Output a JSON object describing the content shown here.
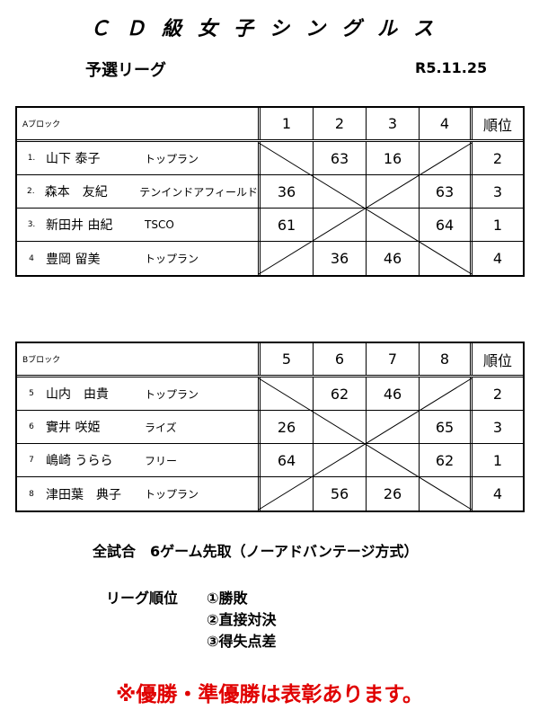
{
  "title": "ＣＤ級女子シングルス",
  "subtitle": "予選リーグ",
  "date": "R5.11.25",
  "blocks": [
    {
      "label": "Aブロック",
      "cols": [
        "1",
        "2",
        "3",
        "4"
      ],
      "rank_header": "順位",
      "players": [
        {
          "no": "1.",
          "name": "山下 泰子",
          "club": "トップラン",
          "scores": [
            "",
            "63",
            "16",
            ""
          ],
          "rank": "2"
        },
        {
          "no": "2.",
          "name": "森本　友紀",
          "club": "テンインドアフィールド",
          "scores": [
            "36",
            "",
            "",
            "63"
          ],
          "rank": "3"
        },
        {
          "no": "3.",
          "name": "新田井 由紀",
          "club": "TSCO",
          "scores": [
            "61",
            "",
            "",
            "64"
          ],
          "rank": "1"
        },
        {
          "no": "4",
          "name": "豊岡 留美",
          "club": "トップラン",
          "scores": [
            "",
            "36",
            "46",
            ""
          ],
          "rank": "4"
        }
      ]
    },
    {
      "label": "Bブロック",
      "cols": [
        "5",
        "6",
        "7",
        "8"
      ],
      "rank_header": "順位",
      "players": [
        {
          "no": "5",
          "name": "山内　由貴",
          "club": "トップラン",
          "scores": [
            "",
            "62",
            "46",
            ""
          ],
          "rank": "2"
        },
        {
          "no": "6",
          "name": "實井 咲姫",
          "club": "ライズ",
          "scores": [
            "26",
            "",
            "",
            "65"
          ],
          "rank": "3"
        },
        {
          "no": "7",
          "name": "嶋崎 うらら",
          "club": "フリー",
          "scores": [
            "64",
            "",
            "",
            "62"
          ],
          "rank": "1"
        },
        {
          "no": "8",
          "name": "津田葉　典子",
          "club": "トップラン",
          "scores": [
            "",
            "56",
            "26",
            ""
          ],
          "rank": "4"
        }
      ]
    }
  ],
  "rules": {
    "format": "全試合　6ゲーム先取（ノーアドバンテージ方式）",
    "ranking_label": "リーグ順位",
    "criteria": [
      "①勝敗",
      "②直接対決",
      "③得失点差"
    ]
  },
  "notice": "※優勝・準優勝は表彰あります。",
  "notice_color": "#e00000"
}
